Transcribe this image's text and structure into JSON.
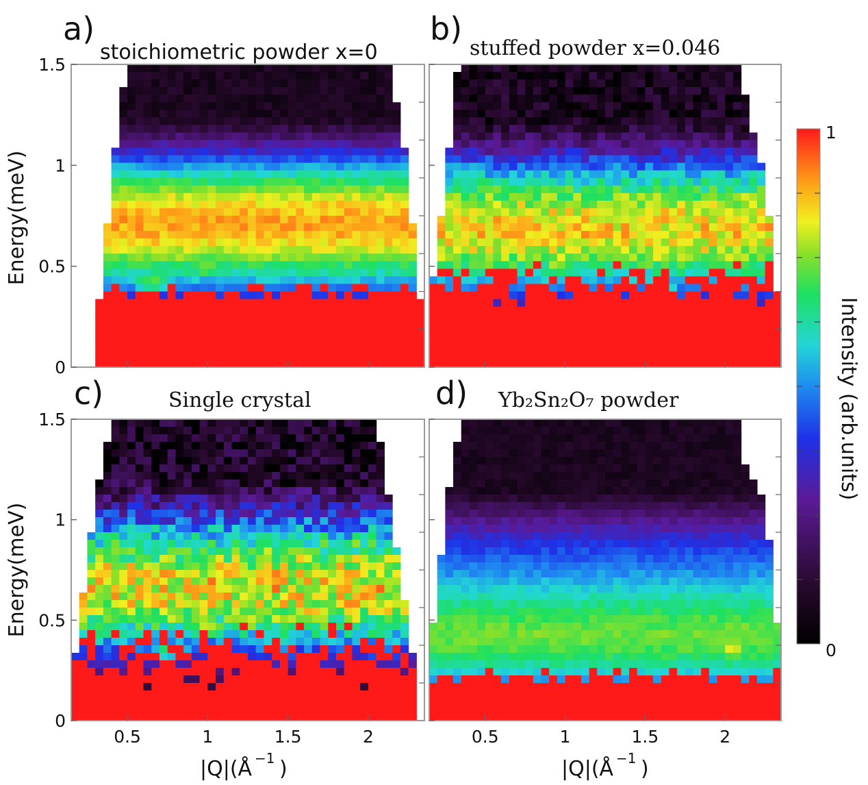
{
  "chart_data": {
    "type": "heatmap",
    "figure_description": "Inelastic neutron scattering intensity maps, energy vs |Q|",
    "colorbar": {
      "label": "Intensity (arb.units)",
      "max_label": "1",
      "min_label": "0",
      "range": [
        0,
        1
      ]
    },
    "x_axis": {
      "label_main": "|Q|(Å",
      "label_sup": "−1",
      "label_close": ")",
      "range": [
        0.15,
        2.35
      ],
      "ticks": [
        0.5,
        1,
        1.5,
        2
      ],
      "tick_labels": [
        "0.5",
        "1",
        "1.5",
        "2"
      ]
    },
    "y_axis": {
      "label": "Energy(meV)",
      "range": [
        0,
        1.5
      ],
      "ticks": [
        0,
        0.5,
        1,
        1.5
      ],
      "tick_labels": [
        "0",
        "0.5",
        "1",
        "1.5"
      ]
    },
    "panels": [
      {
        "letter": "a)",
        "title": "stoichiometric powder x=0",
        "title_serif": false,
        "elastic_top": 0.38,
        "band_center": 0.65,
        "band_strength": 0.62,
        "hot_spots": [
          {
            "q": 1.0,
            "e": 0.5,
            "v": 0.75
          },
          {
            "q": 0.65,
            "e": 0.42,
            "v": 0.72
          }
        ],
        "roughness": 0.04,
        "coverage_low": [
          [
            0.3,
            0.15
          ],
          [
            0.4,
            0.9
          ],
          [
            0.45,
            1.25
          ],
          [
            0.5,
            1.5
          ]
        ],
        "coverage_high": [
          [
            2.35,
            0.15
          ],
          [
            2.25,
            0.9
          ],
          [
            2.2,
            1.25
          ],
          [
            2.12,
            1.5
          ]
        ],
        "blank_below_min": true
      },
      {
        "letter": "b)",
        "title": "stuffed powder x=0.046",
        "title_serif": true,
        "elastic_top": 0.42,
        "band_center": 0.62,
        "band_strength": 0.6,
        "hot_spots": [
          {
            "q": 0.95,
            "e": 0.5,
            "v": 0.74
          },
          {
            "q": 1.6,
            "e": 0.38,
            "v": 0.72
          }
        ],
        "roughness": 0.08,
        "coverage_low": [
          [
            0.15,
            0.3
          ],
          [
            0.28,
            1.1
          ],
          [
            0.33,
            1.5
          ]
        ],
        "coverage_high": [
          [
            2.35,
            0.2
          ],
          [
            2.25,
            0.95
          ],
          [
            2.15,
            1.25
          ],
          [
            2.08,
            1.5
          ]
        ],
        "blank_below_min": false
      },
      {
        "letter": "c)",
        "title": "Single crystal",
        "title_serif": true,
        "elastic_top": 0.32,
        "band_center": 0.6,
        "band_strength": 0.6,
        "hot_spots": [
          {
            "q": 1.0,
            "e": 0.45,
            "v": 0.78
          },
          {
            "q": 0.75,
            "e": 0.35,
            "v": 0.72
          }
        ],
        "roughness": 0.12,
        "coverage_low": [
          [
            0.15,
            0.2
          ],
          [
            0.3,
            1.1
          ],
          [
            0.4,
            1.5
          ]
        ],
        "coverage_high": [
          [
            2.3,
            0.2
          ],
          [
            2.15,
            1.0
          ],
          [
            2.05,
            1.5
          ]
        ],
        "blank_below_min": false
      },
      {
        "letter": "d)",
        "title": "Yb₂Sn₂O₇ powder",
        "title_serif": true,
        "elastic_top": 0.22,
        "band_center": 0.42,
        "band_strength": 0.6,
        "hot_spots": [
          {
            "q": 2.05,
            "e": 0.35,
            "v": 0.8
          },
          {
            "q": 1.3,
            "e": 0.38,
            "v": 0.7
          }
        ],
        "roughness": 0.03,
        "coverage_low": [
          [
            0.15,
            0.3
          ],
          [
            0.28,
            1.2
          ],
          [
            0.35,
            1.5
          ]
        ],
        "coverage_high": [
          [
            2.35,
            0.3
          ],
          [
            2.25,
            1.1
          ],
          [
            2.12,
            1.3
          ],
          [
            2.08,
            1.5
          ]
        ],
        "blank_below_min": false
      }
    ]
  }
}
